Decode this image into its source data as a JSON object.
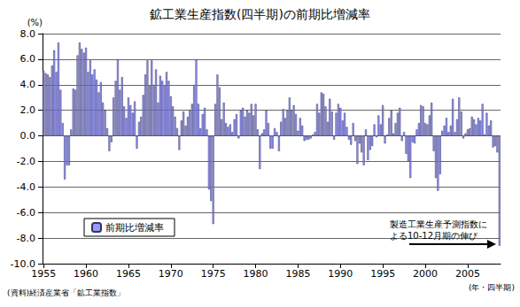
{
  "chart_data": {
    "type": "bar",
    "title": "鉱工業生産指数(四半期)の前期比増減率",
    "y_label": "(%)",
    "x_label": "(年・四半期)",
    "source": "(資料)経済産業省「鉱工業指数」",
    "annotations": [
      {
        "text": "製造工業生産予測指数に\nよる10-12月期の伸び"
      }
    ],
    "legend": "lower left",
    "grid": true,
    "categories": [
      "1955",
      null,
      null,
      null,
      null,
      null,
      null,
      null,
      null,
      null,
      null,
      null,
      null,
      null,
      null,
      null,
      null,
      null,
      null,
      null,
      "1960",
      null,
      null,
      null,
      null,
      null,
      null,
      null,
      null,
      null,
      null,
      null,
      null,
      null,
      null,
      null,
      null,
      null,
      null,
      null,
      "1965",
      null,
      null,
      null,
      null,
      null,
      null,
      null,
      null,
      null,
      null,
      null,
      null,
      null,
      null,
      null,
      null,
      null,
      null,
      null,
      "1970",
      null,
      null,
      null,
      null,
      null,
      null,
      null,
      null,
      null,
      null,
      null,
      null,
      null,
      null,
      null,
      null,
      null,
      null,
      null,
      "1975",
      null,
      null,
      null,
      null,
      null,
      null,
      null,
      null,
      null,
      null,
      null,
      null,
      null,
      null,
      null,
      null,
      null,
      null,
      null,
      "1980",
      null,
      null,
      null,
      null,
      null,
      null,
      null,
      null,
      null,
      null,
      null,
      null,
      null,
      null,
      null,
      null,
      null,
      null,
      null,
      "1985",
      null,
      null,
      null,
      null,
      null,
      null,
      null,
      null,
      null,
      null,
      null,
      null,
      null,
      null,
      null,
      null,
      null,
      null,
      null,
      "1990",
      null,
      null,
      null,
      null,
      null,
      null,
      null,
      null,
      null,
      null,
      null,
      null,
      null,
      null,
      null,
      null,
      null,
      null,
      null,
      "1995",
      null,
      null,
      null,
      null,
      null,
      null,
      null,
      null,
      null,
      null,
      null,
      null,
      null,
      null,
      null,
      null,
      null,
      null,
      null,
      "2000",
      null,
      null,
      null,
      null,
      null,
      null,
      null,
      null,
      null,
      null,
      null,
      null,
      null,
      null,
      null,
      null,
      null,
      null,
      null,
      "2005",
      null,
      null,
      null,
      null,
      null,
      null,
      null,
      null,
      null,
      null,
      null,
      null,
      null,
      null,
      null
    ],
    "series": [
      {
        "name": "前期比増減率",
        "color": "#9999ff",
        "values": [
          5.1,
          4.9,
          4.8,
          4.6,
          5.5,
          6.7,
          5.0,
          7.3,
          3.6,
          1.0,
          -3.4,
          -2.3,
          -2.3,
          0.5,
          3.7,
          3.6,
          6.3,
          7.3,
          6.8,
          6.5,
          6.9,
          5.0,
          5.9,
          4.8,
          5.2,
          4.4,
          3.4,
          4.2,
          2.6,
          2.0,
          0.6,
          -1.2,
          -0.5,
          3.0,
          4.3,
          6.0,
          3.6,
          4.6,
          2.3,
          1.4,
          3.0,
          2.4,
          1.8,
          2.7,
          -1.0,
          1.1,
          1.5,
          3.2,
          4.8,
          5.9,
          3.9,
          5.9,
          4.0,
          5.2,
          2.6,
          4.7,
          4.3,
          3.9,
          5.0,
          4.3,
          3.1,
          2.3,
          1.5,
          0.6,
          -1.1,
          1.2,
          1.9,
          0.8,
          1.5,
          2.0,
          2.5,
          4.0,
          6.0,
          2.5,
          0.6,
          1.7,
          2.2,
          0.5,
          -4.2,
          -5.1,
          -6.9,
          2.5,
          4.8,
          3.8,
          1.3,
          2.6,
          1.0,
          0.7,
          0.9,
          0.3,
          1.3,
          1.7,
          -0.2,
          2.0,
          2.2,
          1.5,
          2.0,
          1.8,
          2.5,
          1.6,
          2.5,
          0.5,
          -2.6,
          0.2,
          0.5,
          2.0,
          1.0,
          -1.0,
          -1.0,
          0.6,
          0.3,
          -1.2,
          1.1,
          2.1,
          1.4,
          2.0,
          3.0,
          2.0,
          2.4,
          1.7,
          0.4,
          1.4,
          0.8,
          -0.4,
          -0.3,
          -0.3,
          -0.2,
          0.1,
          0.3,
          2.5,
          1.8,
          3.4,
          3.3,
          2.3,
          1.1,
          2.9,
          1.9,
          -0.3,
          1.8,
          2.5,
          2.2,
          1.2,
          1.8,
          0.7,
          -0.3,
          -0.7,
          1.0,
          -0.4,
          -2.2,
          -0.6,
          -1.3,
          -2.3,
          0.5,
          -1.9,
          -1.1,
          -0.8,
          0.9,
          -0.1,
          1.6,
          0.9,
          2.4,
          -0.6,
          0.1,
          1.4,
          2.0,
          0.2,
          1.0,
          1.8,
          2.2,
          -0.4,
          0.3,
          -1.4,
          -2.0,
          -3.3,
          -0.5,
          -0.6,
          0.5,
          1.0,
          2.4,
          2.3,
          1.0,
          0.9,
          1.6,
          2.6,
          -1.2,
          -3.3,
          -4.3,
          -3.0,
          0.4,
          0.8,
          1.4,
          0.3,
          0.8,
          2.9,
          0.3,
          1.3,
          3.0,
          1.9,
          -0.2,
          0.2,
          0.5,
          0.6,
          1.5,
          1.3,
          0.9,
          1.4,
          1.2,
          2.5,
          0.1,
          1.8,
          0.8,
          1.2,
          -0.9,
          -0.8,
          -1.3,
          -8.6
        ]
      }
    ],
    "ylim": [
      -10,
      8
    ],
    "yticks": [
      {
        "value": -10,
        "label": "-10.0"
      },
      {
        "value": -8,
        "label": "-8.0"
      },
      {
        "value": -6,
        "label": "-6.0"
      },
      {
        "value": -4,
        "label": "-4.0"
      },
      {
        "value": -2,
        "label": "-2.0"
      },
      {
        "value": 0,
        "label": "0.0"
      },
      {
        "value": 2,
        "label": "2.0"
      },
      {
        "value": 4,
        "label": "4.0"
      },
      {
        "value": 6,
        "label": "6.0"
      },
      {
        "value": 8,
        "label": "8.0"
      }
    ]
  }
}
